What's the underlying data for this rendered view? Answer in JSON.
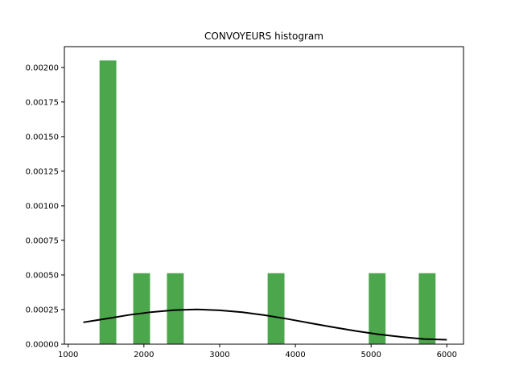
{
  "chart_data": {
    "type": "bar",
    "title": "CONVOYEURS histogram",
    "xlabel": "",
    "ylabel": "",
    "xlim": [
      950,
      6220
    ],
    "ylim": [
      0,
      0.00215
    ],
    "bar_color": "#4ca64c",
    "curve_color": "#000000",
    "bar_width": 222,
    "bars": [
      {
        "x": 1525,
        "y": 0.00205
      },
      {
        "x": 1970,
        "y": 0.000513
      },
      {
        "x": 2415,
        "y": 0.000513
      },
      {
        "x": 3745,
        "y": 0.000513
      },
      {
        "x": 5080,
        "y": 0.000513
      },
      {
        "x": 5740,
        "y": 0.000513
      }
    ],
    "series": [
      {
        "type": "line",
        "x": [
          1200,
          1500,
          1800,
          2100,
          2400,
          2700,
          3000,
          3300,
          3600,
          3900,
          4200,
          4500,
          4800,
          5100,
          5400,
          5700,
          6000
        ],
        "y": [
          0.000158,
          0.000184,
          0.000211,
          0.000232,
          0.000246,
          0.000251,
          0.000245,
          0.000231,
          0.000209,
          0.000182,
          0.000152,
          0.000123,
          9.5e-05,
          7.1e-05,
          5.2e-05,
          3.7e-05,
          3.2e-05
        ]
      }
    ],
    "x_ticks": [
      1000,
      2000,
      3000,
      4000,
      5000,
      6000
    ],
    "x_tick_labels": [
      "1000",
      "2000",
      "3000",
      "4000",
      "5000",
      "6000"
    ],
    "y_ticks": [
      0,
      0.00025,
      0.0005,
      0.00075,
      0.001,
      0.00125,
      0.0015,
      0.00175,
      0.002
    ],
    "y_tick_labels": [
      "0.00000",
      "0.00025",
      "0.00050",
      "0.00075",
      "0.00100",
      "0.00125",
      "0.00150",
      "0.00175",
      "0.00200"
    ]
  }
}
